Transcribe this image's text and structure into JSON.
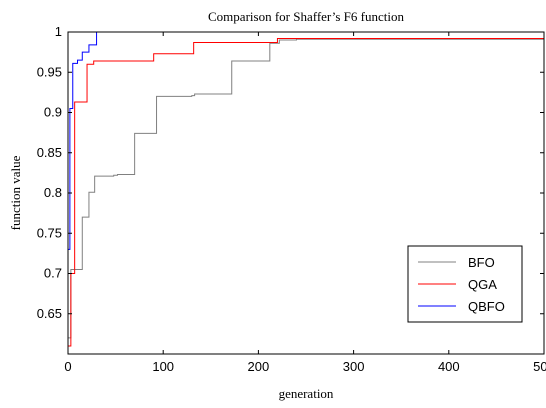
{
  "chart_data": {
    "type": "line",
    "title": "Comparison for Shaffer’s F6 function",
    "xlabel": "generation",
    "ylabel": "function value",
    "xlim": [
      0,
      500
    ],
    "ylim": [
      0.6,
      1.0
    ],
    "xticks": [
      0,
      100,
      200,
      300,
      400,
      500
    ],
    "yticks": [
      0.65,
      0.7,
      0.75,
      0.8,
      0.85,
      0.9,
      0.95,
      1
    ],
    "ytick_labels": [
      "0.65",
      "0.7",
      "0.75",
      "0.8",
      "0.85",
      "0.9",
      "0.95",
      "1"
    ],
    "grid": false,
    "legend_position": "lower-right",
    "series": [
      {
        "name": "BFO",
        "color": "#808080",
        "x": [
          0,
          3,
          3,
          15,
          15,
          22,
          22,
          28,
          28,
          48,
          48,
          52,
          52,
          70,
          70,
          93,
          93,
          130,
          130,
          133,
          133,
          172,
          172,
          212,
          212,
          222,
          222,
          240,
          240,
          500
        ],
        "y": [
          0.62,
          0.62,
          0.705,
          0.705,
          0.77,
          0.77,
          0.801,
          0.801,
          0.821,
          0.821,
          0.822,
          0.822,
          0.823,
          0.823,
          0.874,
          0.874,
          0.92,
          0.92,
          0.921,
          0.921,
          0.923,
          0.923,
          0.964,
          0.964,
          0.986,
          0.986,
          0.99,
          0.99,
          0.991,
          0.991
        ]
      },
      {
        "name": "QGA",
        "color": "#ff0000",
        "x": [
          0,
          3,
          3,
          7,
          7,
          20,
          20,
          27,
          27,
          90,
          90,
          132,
          132,
          220,
          220,
          500
        ],
        "y": [
          0.61,
          0.61,
          0.7,
          0.7,
          0.913,
          0.913,
          0.96,
          0.96,
          0.964,
          0.964,
          0.973,
          0.973,
          0.987,
          0.987,
          0.992,
          0.992
        ]
      },
      {
        "name": "QBFO",
        "color": "#0000ff",
        "x": [
          0,
          2,
          2,
          5,
          5,
          10,
          10,
          15,
          15,
          22,
          22,
          30,
          30,
          500
        ],
        "y": [
          0.73,
          0.73,
          0.905,
          0.905,
          0.961,
          0.961,
          0.965,
          0.965,
          0.975,
          0.975,
          0.984,
          0.984,
          1.0,
          1.0
        ]
      }
    ]
  }
}
